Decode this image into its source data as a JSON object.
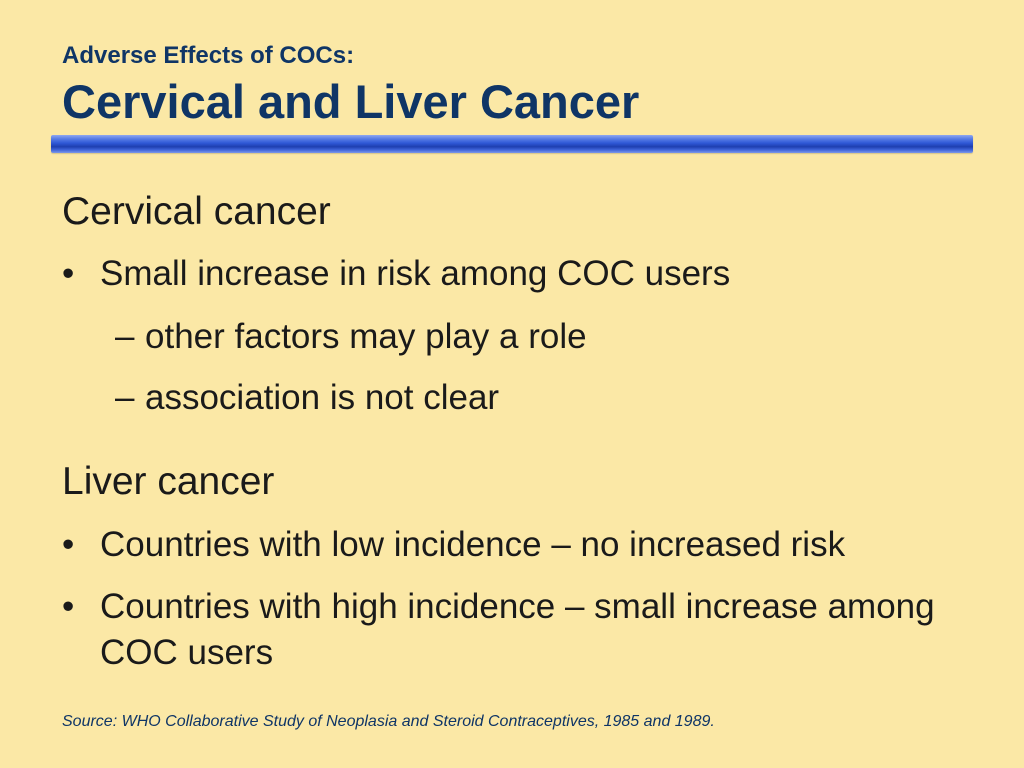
{
  "header": {
    "subtitle": "Adverse Effects of COCs:",
    "title": "Cervical and Liver Cancer"
  },
  "sections": [
    {
      "heading": "Cervical cancer",
      "bullets": [
        {
          "text": "Small increase in risk among COC users",
          "sub": [
            "other factors may play a role",
            "association is not clear"
          ]
        }
      ]
    },
    {
      "heading": "Liver cancer",
      "bullets": [
        {
          "text": "Countries with low incidence – no increased risk"
        },
        {
          "text": "Countries with high incidence – small increase among COC users"
        }
      ]
    }
  ],
  "markers": {
    "bullet": "•",
    "dash": "–"
  },
  "footer": {
    "source": "Source: WHO Collaborative Study of Neoplasia and Steroid Contraceptives, 1985 and 1989."
  },
  "colors": {
    "background": "#fbe8a6",
    "title": "#0f3566",
    "rule": "#2f58d6"
  }
}
